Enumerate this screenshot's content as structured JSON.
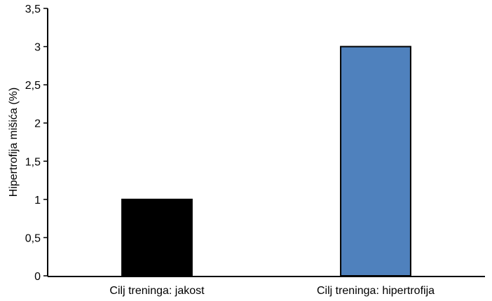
{
  "chart_data": {
    "type": "bar",
    "title": "",
    "xlabel": "",
    "ylabel": "Hipertrofija mišića (%)",
    "categories": [
      "Cilj treninga: jakost",
      "Cilj treninga: hipertrofija"
    ],
    "values": [
      1,
      3
    ],
    "ylim": [
      0,
      3.5
    ],
    "yticks": [
      0,
      0.5,
      1,
      1.5,
      2,
      2.5,
      3,
      3.5
    ],
    "ytick_labels": [
      "0",
      "0,5",
      "1",
      "1,5",
      "2",
      "2,5",
      "3",
      "3,5"
    ],
    "bar_colors": [
      "#000000",
      "#4f81bd"
    ],
    "grid": false,
    "legend": "none"
  }
}
